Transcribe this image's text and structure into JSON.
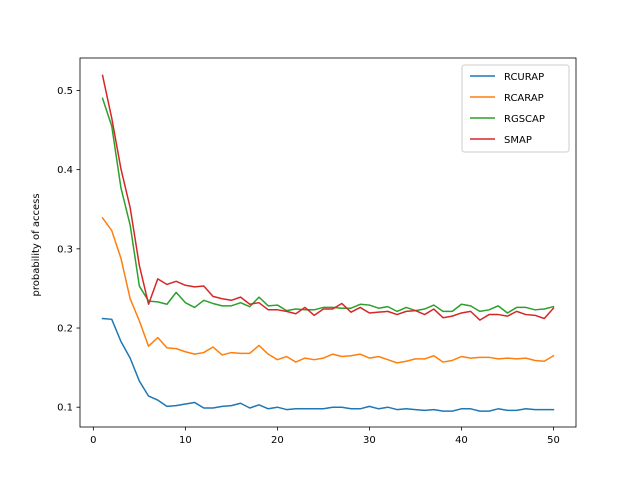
{
  "chart_data": {
    "type": "line",
    "title": "",
    "xlabel": "",
    "ylabel": "probability of access",
    "xlim": [
      -1.45,
      52.45
    ],
    "ylim": [
      0.075,
      0.541
    ],
    "xticks": [
      0,
      10,
      20,
      30,
      40,
      50
    ],
    "yticks": [
      0.1,
      0.2,
      0.3,
      0.4,
      0.5
    ],
    "grid": false,
    "legend_position": "top-right",
    "x": [
      1,
      2,
      3,
      4,
      5,
      6,
      7,
      8,
      9,
      10,
      11,
      12,
      13,
      14,
      15,
      16,
      17,
      18,
      19,
      20,
      21,
      22,
      23,
      24,
      25,
      26,
      27,
      28,
      29,
      30,
      31,
      32,
      33,
      34,
      35,
      36,
      37,
      38,
      39,
      40,
      41,
      42,
      43,
      44,
      45,
      46,
      47,
      48,
      49,
      50
    ],
    "series": [
      {
        "name": "RCURAP",
        "color": "#1f77b4",
        "values": [
          0.212,
          0.211,
          0.183,
          0.162,
          0.133,
          0.114,
          0.109,
          0.101,
          0.102,
          0.104,
          0.106,
          0.099,
          0.099,
          0.101,
          0.102,
          0.105,
          0.099,
          0.103,
          0.098,
          0.1,
          0.097,
          0.098,
          0.098,
          0.098,
          0.098,
          0.1,
          0.1,
          0.098,
          0.098,
          0.101,
          0.098,
          0.1,
          0.097,
          0.098,
          0.097,
          0.096,
          0.097,
          0.095,
          0.095,
          0.098,
          0.098,
          0.095,
          0.095,
          0.098,
          0.096,
          0.096,
          0.098,
          0.097,
          0.097,
          0.097
        ]
      },
      {
        "name": "RCARAP",
        "color": "#ff7f0e",
        "values": [
          0.339,
          0.323,
          0.288,
          0.237,
          0.209,
          0.177,
          0.188,
          0.175,
          0.174,
          0.17,
          0.167,
          0.169,
          0.176,
          0.166,
          0.169,
          0.168,
          0.168,
          0.178,
          0.167,
          0.16,
          0.164,
          0.157,
          0.162,
          0.16,
          0.162,
          0.167,
          0.164,
          0.165,
          0.167,
          0.162,
          0.164,
          0.16,
          0.156,
          0.158,
          0.161,
          0.161,
          0.165,
          0.157,
          0.159,
          0.164,
          0.162,
          0.163,
          0.163,
          0.161,
          0.162,
          0.161,
          0.162,
          0.159,
          0.158,
          0.165
        ]
      },
      {
        "name": "RGSCAP",
        "color": "#2ca02c",
        "values": [
          0.49,
          0.455,
          0.377,
          0.33,
          0.253,
          0.234,
          0.233,
          0.23,
          0.245,
          0.232,
          0.226,
          0.235,
          0.231,
          0.228,
          0.228,
          0.232,
          0.227,
          0.239,
          0.228,
          0.229,
          0.222,
          0.224,
          0.223,
          0.223,
          0.226,
          0.226,
          0.225,
          0.225,
          0.23,
          0.229,
          0.225,
          0.227,
          0.221,
          0.226,
          0.222,
          0.224,
          0.229,
          0.221,
          0.221,
          0.23,
          0.228,
          0.221,
          0.223,
          0.228,
          0.219,
          0.226,
          0.226,
          0.223,
          0.224,
          0.227
        ]
      },
      {
        "name": "SMAP",
        "color": "#d62728",
        "values": [
          0.519,
          0.465,
          0.401,
          0.352,
          0.279,
          0.23,
          0.262,
          0.255,
          0.259,
          0.254,
          0.252,
          0.253,
          0.24,
          0.237,
          0.235,
          0.239,
          0.23,
          0.232,
          0.223,
          0.223,
          0.221,
          0.218,
          0.226,
          0.216,
          0.224,
          0.224,
          0.231,
          0.22,
          0.226,
          0.219,
          0.22,
          0.221,
          0.217,
          0.221,
          0.222,
          0.217,
          0.224,
          0.213,
          0.215,
          0.219,
          0.221,
          0.21,
          0.217,
          0.217,
          0.215,
          0.221,
          0.217,
          0.216,
          0.212,
          0.225
        ]
      }
    ]
  }
}
